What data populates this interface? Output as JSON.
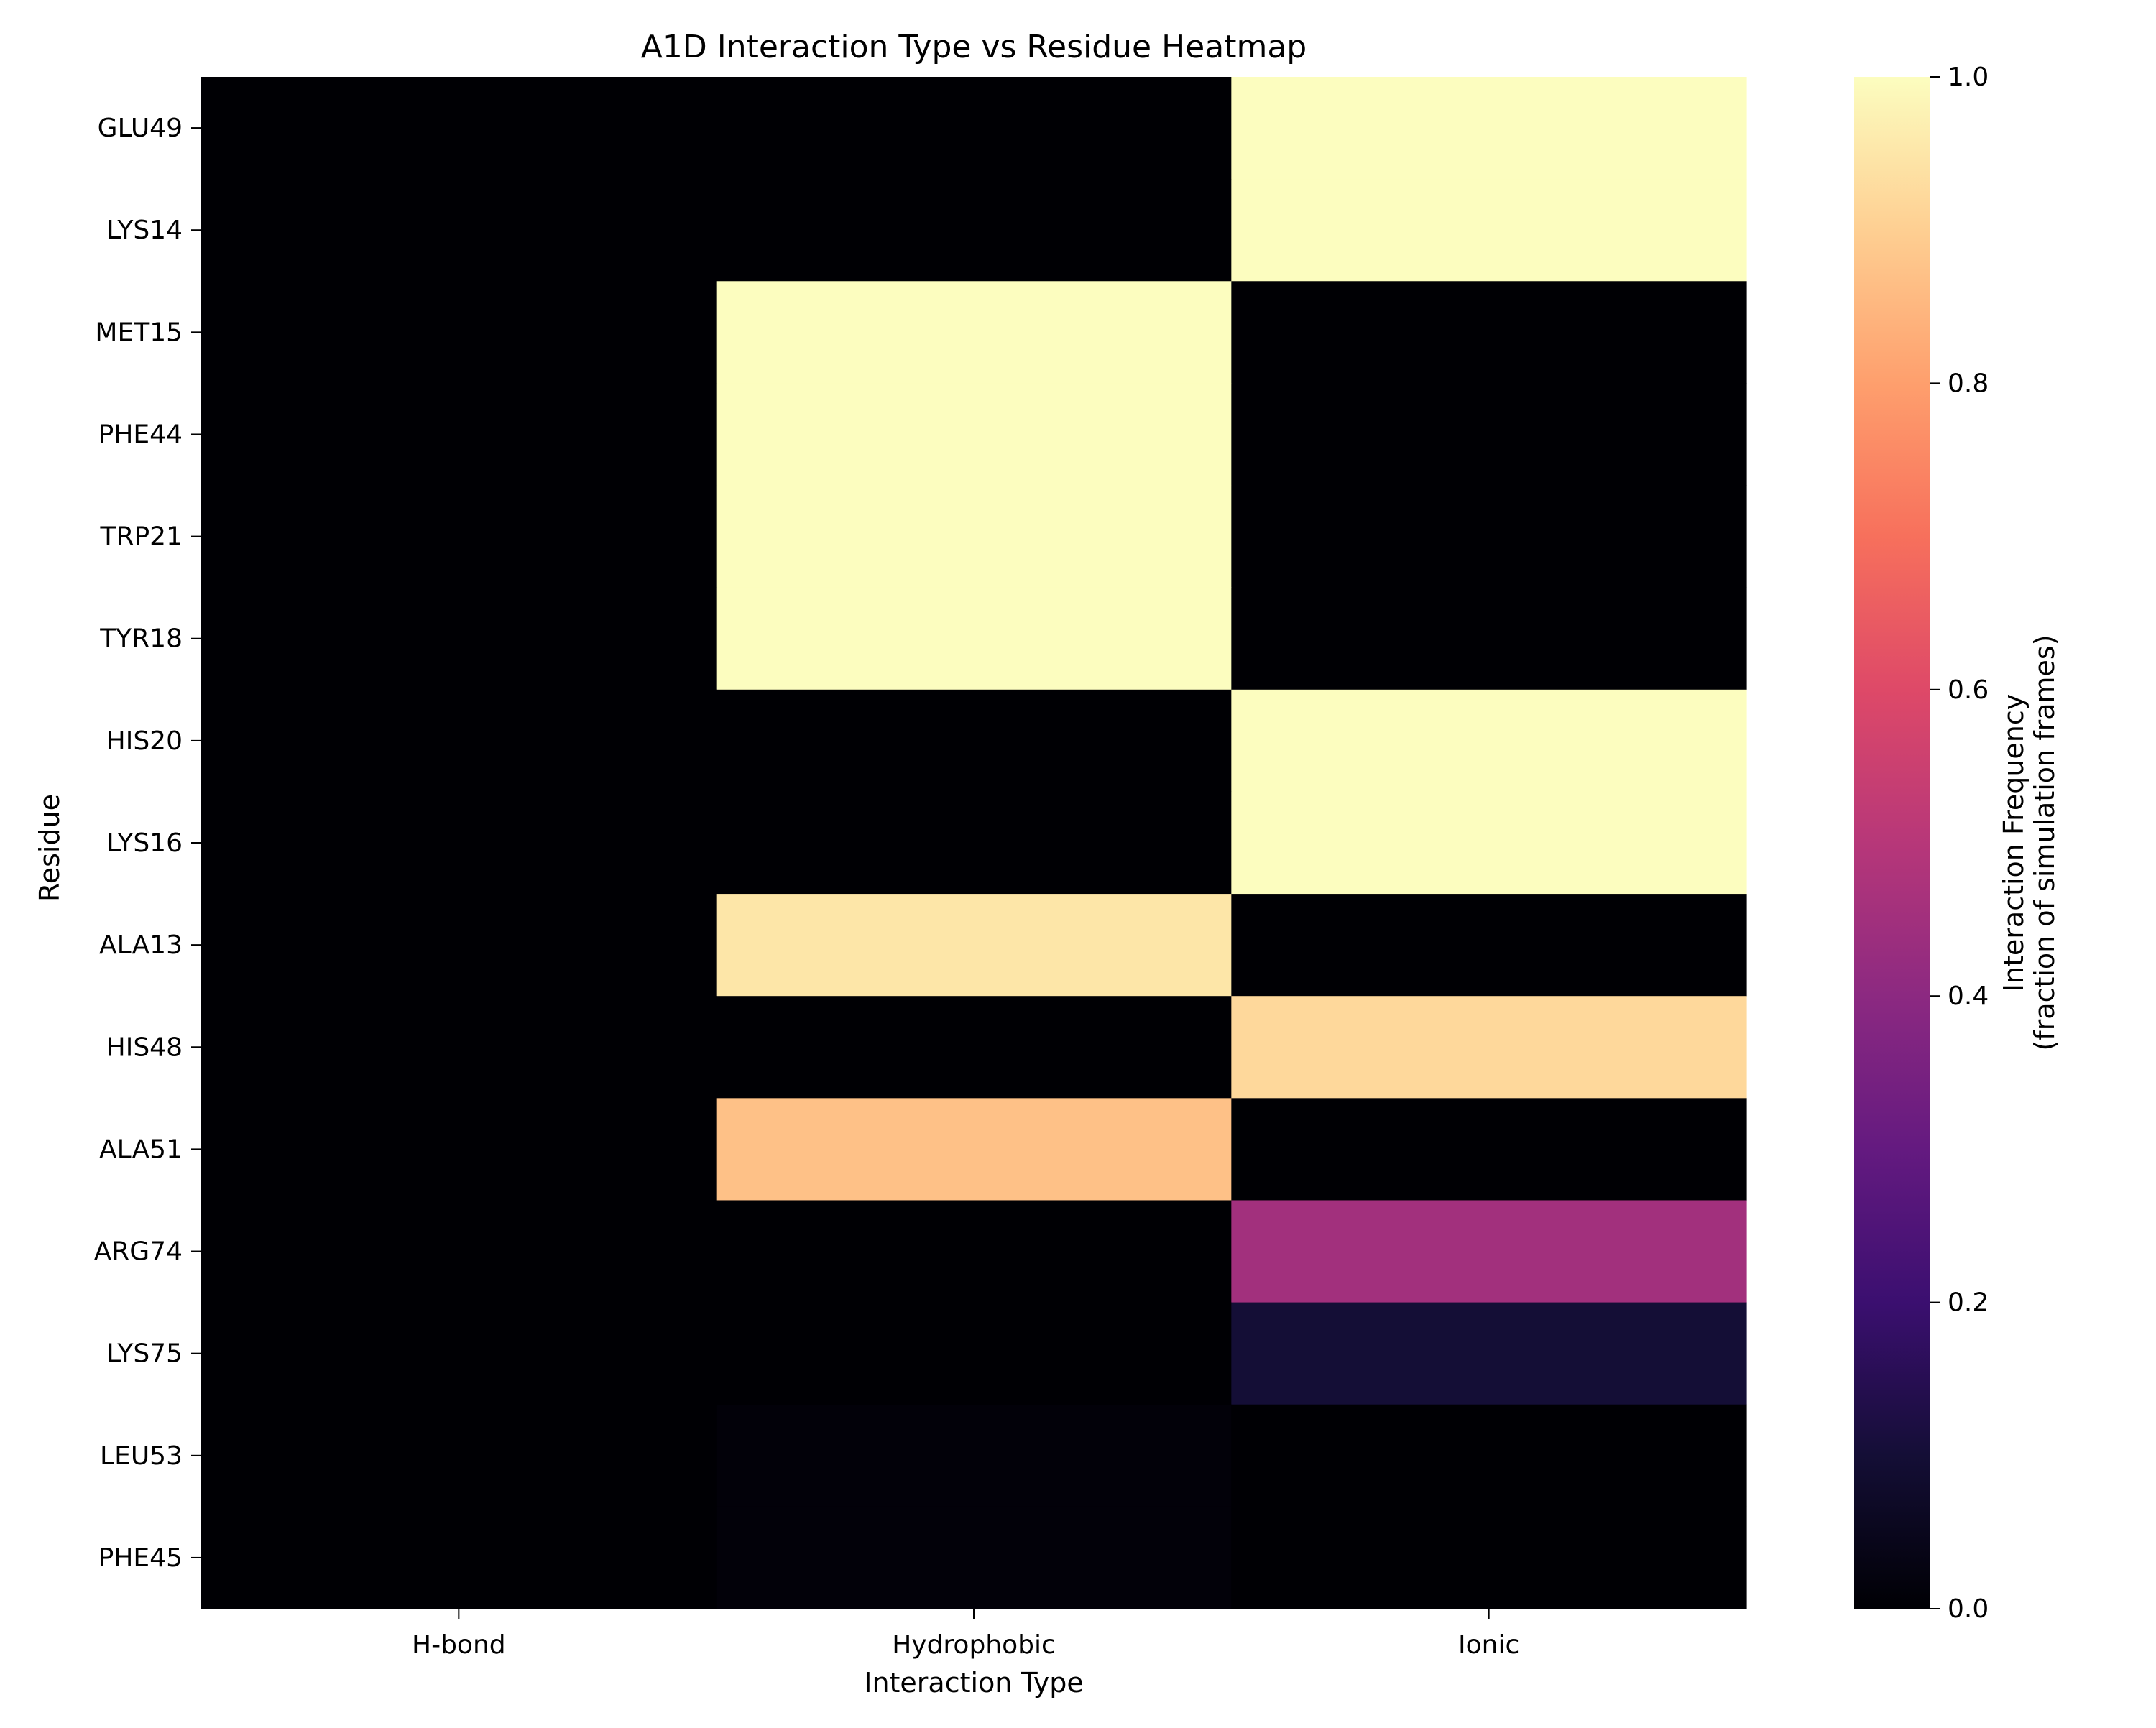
{
  "chart_data": {
    "type": "heatmap",
    "title": "A1D Interaction Type vs Residue Heatmap",
    "xlabel": "Interaction Type",
    "ylabel": "Residue",
    "x_categories": [
      "H-bond",
      "Hydrophobic",
      "Ionic"
    ],
    "y_categories": [
      "GLU49",
      "LYS14",
      "MET15",
      "PHE44",
      "TRP21",
      "TYR18",
      "HIS20",
      "LYS16",
      "ALA13",
      "HIS48",
      "ALA51",
      "ARG74",
      "LYS75",
      "LEU53",
      "PHE45"
    ],
    "values": [
      [
        0.0,
        0.0,
        1.0
      ],
      [
        0.0,
        0.0,
        1.0
      ],
      [
        0.0,
        1.0,
        0.0
      ],
      [
        0.0,
        1.0,
        0.0
      ],
      [
        0.0,
        1.0,
        0.0
      ],
      [
        0.0,
        1.0,
        0.0
      ],
      [
        0.0,
        0.0,
        1.0
      ],
      [
        0.0,
        0.0,
        1.0
      ],
      [
        0.0,
        0.95,
        0.0
      ],
      [
        0.0,
        0.0,
        0.92
      ],
      [
        0.0,
        0.87,
        0.0
      ],
      [
        0.0,
        0.0,
        0.45
      ],
      [
        0.0,
        0.0,
        0.1
      ],
      [
        0.0,
        0.01,
        0.0
      ],
      [
        0.0,
        0.01,
        0.0
      ]
    ],
    "colormap": "magma",
    "colorbar": {
      "label_line1": "Interaction Frequency",
      "label_line2": "(fraction of simulation frames)",
      "range": [
        0,
        1
      ],
      "ticks": [
        0.0,
        0.2,
        0.4,
        0.6,
        0.8,
        1.0
      ],
      "tick_labels": [
        "0.0",
        "0.2",
        "0.4",
        "0.6",
        "0.8",
        "1.0"
      ]
    },
    "grid": false
  }
}
